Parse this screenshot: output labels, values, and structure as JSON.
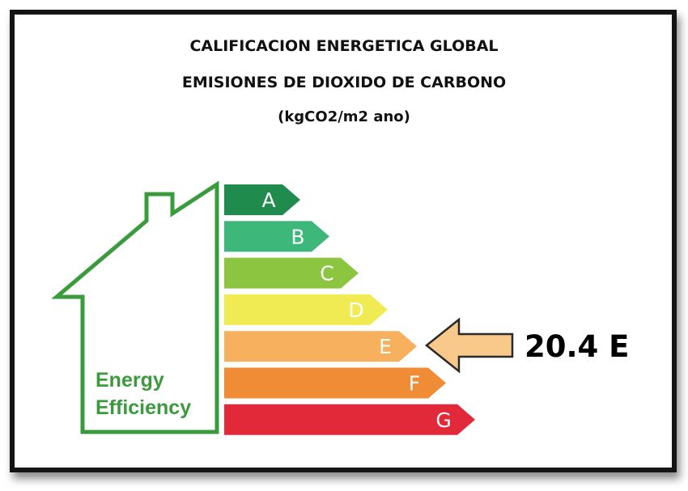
{
  "title": {
    "line1": "CALIFICACION ENERGETICA GLOBAL",
    "line2": "EMISIONES DE DIOXIDO DE CARBONO",
    "unit": "(kgCO2/m2 ano)"
  },
  "house_label": {
    "line1": "Energy",
    "line2": "Efficiency"
  },
  "bands": [
    {
      "letter": "A",
      "color": "#1f8b4c"
    },
    {
      "letter": "B",
      "color": "#3db77a"
    },
    {
      "letter": "C",
      "color": "#8cc53f"
    },
    {
      "letter": "D",
      "color": "#f0eb52"
    },
    {
      "letter": "E",
      "color": "#f6b05e"
    },
    {
      "letter": "F",
      "color": "#ef8c35"
    },
    {
      "letter": "G",
      "color": "#e2293a"
    }
  ],
  "rating": {
    "value": "20.4",
    "class": "E",
    "text": "20.4 E",
    "arrow_color": "#f8c98a",
    "arrow_icon": "left-arrow-icon"
  },
  "colors": {
    "house_outline": "#3a9b3c",
    "frame": "#141414"
  }
}
